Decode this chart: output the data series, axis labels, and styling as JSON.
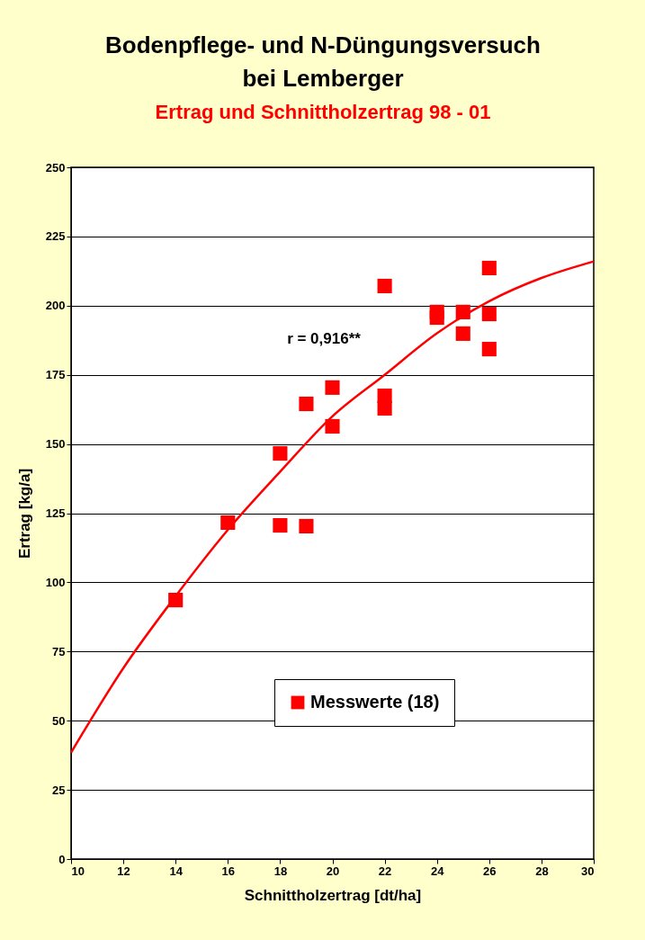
{
  "chart_data": {
    "type": "scatter",
    "title": [
      "Bodenpflege- und N-Düngungsversuch",
      "bei Lemberger"
    ],
    "subtitle": "Ertrag und Schnittholzertrag 98 - 01",
    "xlabel": "Schnittholzertrag [dt/ha]",
    "ylabel": "Ertrag [kg/a]",
    "series": [
      {
        "name": "Messwerte (18)",
        "color": "#ff0000",
        "x": [
          14,
          16,
          18,
          18,
          19,
          19,
          20,
          20,
          22,
          22,
          22,
          24,
          24,
          25,
          25,
          26,
          26,
          26
        ],
        "values": [
          93.6,
          121.6,
          146.6,
          120.6,
          164.5,
          120.3,
          170.4,
          156.4,
          207.1,
          167.4,
          162.9,
          197.7,
          195.7,
          197.7,
          189.9,
          213.6,
          197.0,
          184.3
        ]
      },
      {
        "type": "line",
        "marker": "none",
        "color": "#ff0000",
        "x": [
          10,
          12,
          14,
          16,
          18,
          20,
          22,
          24,
          26,
          28,
          30
        ],
        "values": [
          38.5,
          69,
          95,
          119,
          140,
          160,
          175,
          190,
          201.6,
          210,
          216
        ]
      }
    ],
    "annotations": [
      "r = 0,916**"
    ],
    "xlim": [
      10,
      30
    ],
    "xticks": [
      10,
      12,
      14,
      16,
      18,
      20,
      22,
      24,
      26,
      28,
      30
    ],
    "ylim": [
      0,
      250
    ],
    "yticks": [
      0,
      25,
      50,
      75,
      100,
      125,
      150,
      175,
      200,
      225,
      250
    ],
    "grid": "y",
    "legend": "bottom",
    "marker": "square"
  }
}
